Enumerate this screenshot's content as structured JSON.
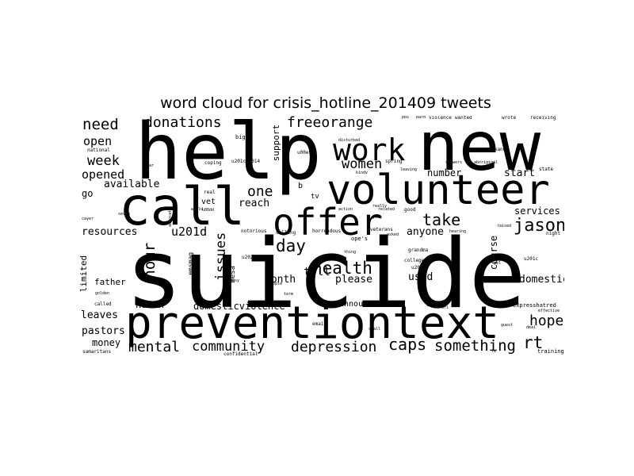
{
  "chart_data": {
    "type": "wordcloud",
    "title": "word cloud for crisis_hotline_201409 tweets",
    "colors": {
      "background": "#ffffff",
      "words": "#000000"
    },
    "words": [
      {
        "text": "suicide"
      },
      {
        "text": "help"
      },
      {
        "text": "new"
      },
      {
        "text": "preventiontext"
      },
      {
        "text": "call"
      },
      {
        "text": "volunteer"
      },
      {
        "text": "offer"
      },
      {
        "text": "work"
      },
      {
        "text": "health"
      },
      {
        "text": "jason"
      },
      {
        "text": "donations"
      },
      {
        "text": "freeorange"
      },
      {
        "text": "need"
      },
      {
        "text": "mental"
      },
      {
        "text": "community"
      },
      {
        "text": "depression"
      },
      {
        "text": "caps"
      },
      {
        "text": "something"
      },
      {
        "text": "rt"
      },
      {
        "text": "hope"
      },
      {
        "text": "hour"
      },
      {
        "text": "issues"
      },
      {
        "text": "day"
      },
      {
        "text": "take"
      },
      {
        "text": "women"
      },
      {
        "text": "one"
      },
      {
        "text": "week"
      },
      {
        "text": "open"
      },
      {
        "text": "opened"
      },
      {
        "text": "available"
      },
      {
        "text": "go"
      },
      {
        "text": "resources"
      },
      {
        "text": "u201d"
      },
      {
        "text": "reach"
      },
      {
        "text": "toll"
      },
      {
        "text": "month"
      },
      {
        "text": "please"
      },
      {
        "text": "used"
      },
      {
        "text": "anyone"
      },
      {
        "text": "services"
      },
      {
        "text": "start"
      },
      {
        "text": "number"
      },
      {
        "text": "course"
      },
      {
        "text": "domestic"
      },
      {
        "text": "domesticviolence"
      },
      {
        "text": "human"
      },
      {
        "text": "leaves"
      },
      {
        "text": "pastors"
      },
      {
        "text": "money"
      },
      {
        "text": "father"
      },
      {
        "text": "limited"
      },
      {
        "text": "support"
      },
      {
        "text": "announcement"
      },
      {
        "text": "vet"
      },
      {
        "text": "mesa"
      },
      {
        "text": "emsmag"
      },
      {
        "text": "b"
      },
      {
        "text": "tv"
      },
      {
        "text": "samaritans"
      },
      {
        "text": "called"
      },
      {
        "text": "national"
      },
      {
        "text": "coping"
      },
      {
        "text": "big"
      },
      {
        "text": "real"
      },
      {
        "text": "good"
      },
      {
        "text": "spring"
      },
      {
        "text": "violence"
      },
      {
        "text": "wanted"
      },
      {
        "text": "wrote"
      },
      {
        "text": "receiving"
      },
      {
        "text": "spokane"
      },
      {
        "text": "state"
      },
      {
        "text": "night"
      },
      {
        "text": "college"
      },
      {
        "text": "grandma"
      },
      {
        "text": "veterans"
      },
      {
        "text": "seattle"
      },
      {
        "text": "expresshatred"
      },
      {
        "text": "training"
      },
      {
        "text": "email"
      },
      {
        "text": "confidential"
      },
      {
        "text": "people"
      },
      {
        "text": "term"
      },
      {
        "text": "busy"
      },
      {
        "text": "notorious"
      },
      {
        "text": "calling"
      },
      {
        "text": "horrendous"
      },
      {
        "text": "related"
      },
      {
        "text": "really"
      },
      {
        "text": "yeah"
      },
      {
        "text": "thing"
      },
      {
        "text": "players"
      },
      {
        "text": "asked"
      },
      {
        "text": "hearing"
      },
      {
        "text": "kindv"
      },
      {
        "text": "leaving"
      },
      {
        "text": "viewers"
      },
      {
        "text": "aboriginal"
      },
      {
        "text": "disturbed"
      },
      {
        "text": "advocate"
      },
      {
        "text": "golden"
      },
      {
        "text": "deal"
      },
      {
        "text": "effective"
      },
      {
        "text": "small"
      },
      {
        "text": "action"
      },
      {
        "text": "ope's"
      },
      {
        "text": "u2014"
      },
      {
        "text": "u201c"
      },
      {
        "text": "u2022"
      },
      {
        "text": "u00e9"
      },
      {
        "text": "u201cu2014"
      },
      {
        "text": "u00dd"
      },
      {
        "text": "fm"
      },
      {
        "text": "pbs"
      },
      {
        "text": "seven"
      },
      {
        "text": "guest"
      },
      {
        "text": "gel"
      },
      {
        "text": "bard"
      },
      {
        "text": "raised"
      },
      {
        "text": "cayer"
      },
      {
        "text": "far"
      },
      {
        "text": "world"
      },
      {
        "text": "mri"
      }
    ]
  }
}
